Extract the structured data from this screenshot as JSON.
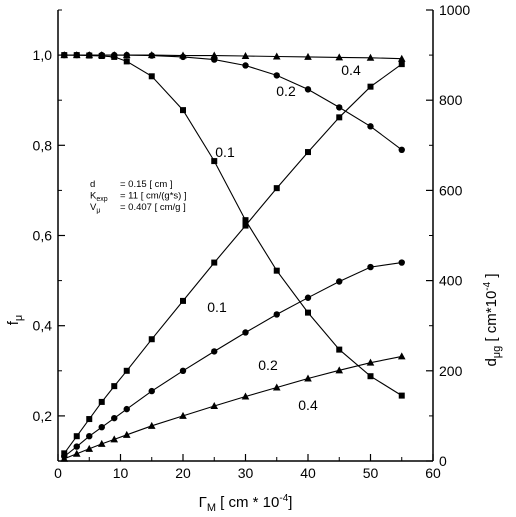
{
  "chart_data": {
    "type": "line",
    "xlabel": "Γ_M [ cm * 10^-4]",
    "ylabel_left": "f_μ",
    "ylabel_right": "d_μg [ cm*10^-4 ]",
    "xlim": [
      0,
      60
    ],
    "ylim_left": [
      0.1,
      1.1
    ],
    "ylim_right": [
      0,
      1000
    ],
    "xticks": [
      "0",
      "10",
      "20",
      "30",
      "40",
      "50",
      "60"
    ],
    "yticks_left": [
      "0,2",
      "0,4",
      "0,6",
      "0,8",
      "1,0"
    ],
    "yticks_right": [
      "0",
      "200",
      "400",
      "600",
      "800",
      "1000"
    ],
    "annotation": [
      {
        "name": "d",
        "value": "= 0.15 [ cm ]"
      },
      {
        "name": "K_exp",
        "value": "= 11 [ cm/(g*s) ]"
      },
      {
        "name": "V_μ",
        "value": "= 0.407 [ cm/g ]"
      }
    ],
    "x": [
      1,
      3,
      5,
      7,
      9,
      11,
      15,
      20,
      25,
      30,
      35,
      40,
      45,
      50,
      55
    ],
    "series": [
      {
        "name": "0.1",
        "axis": "left",
        "marker": "square",
        "values": [
          1.0,
          1.0,
          0.999,
          0.998,
          0.996,
          0.986,
          0.953,
          0.878,
          0.765,
          0.634,
          0.522,
          0.429,
          0.347,
          0.288,
          0.245
        ]
      },
      {
        "name": "0.2",
        "axis": "left",
        "marker": "circle",
        "values": [
          1.0,
          1.0,
          1.0,
          1.0,
          1.0,
          1.0,
          0.999,
          0.996,
          0.99,
          0.977,
          0.955,
          0.924,
          0.884,
          0.842,
          0.79
        ]
      },
      {
        "name": "0.4",
        "axis": "left",
        "marker": "triangle",
        "values": [
          1.0,
          1.0,
          1.0,
          1.0,
          1.0,
          1.0,
          1.0,
          0.999,
          0.999,
          0.998,
          0.997,
          0.996,
          0.995,
          0.994,
          0.992
        ]
      },
      {
        "name": "0.1",
        "axis": "right",
        "marker": "square",
        "values": [
          17,
          55,
          93,
          131,
          166,
          200,
          270,
          355,
          440,
          522,
          605,
          685,
          762,
          830,
          880
        ]
      },
      {
        "name": "0.2",
        "axis": "right",
        "marker": "circle",
        "values": [
          10,
          32,
          55,
          75,
          95,
          115,
          155,
          200,
          243,
          285,
          325,
          362,
          398,
          430,
          440
        ]
      },
      {
        "name": "0.4",
        "axis": "right",
        "marker": "triangle",
        "values": [
          5,
          16,
          27,
          38,
          48,
          58,
          78,
          100,
          122,
          143,
          163,
          183,
          201,
          218,
          232
        ]
      }
    ],
    "curve_labels": [
      "0.1",
      "0.2",
      "0.4",
      "0.1",
      "0.2",
      "0.4"
    ]
  }
}
